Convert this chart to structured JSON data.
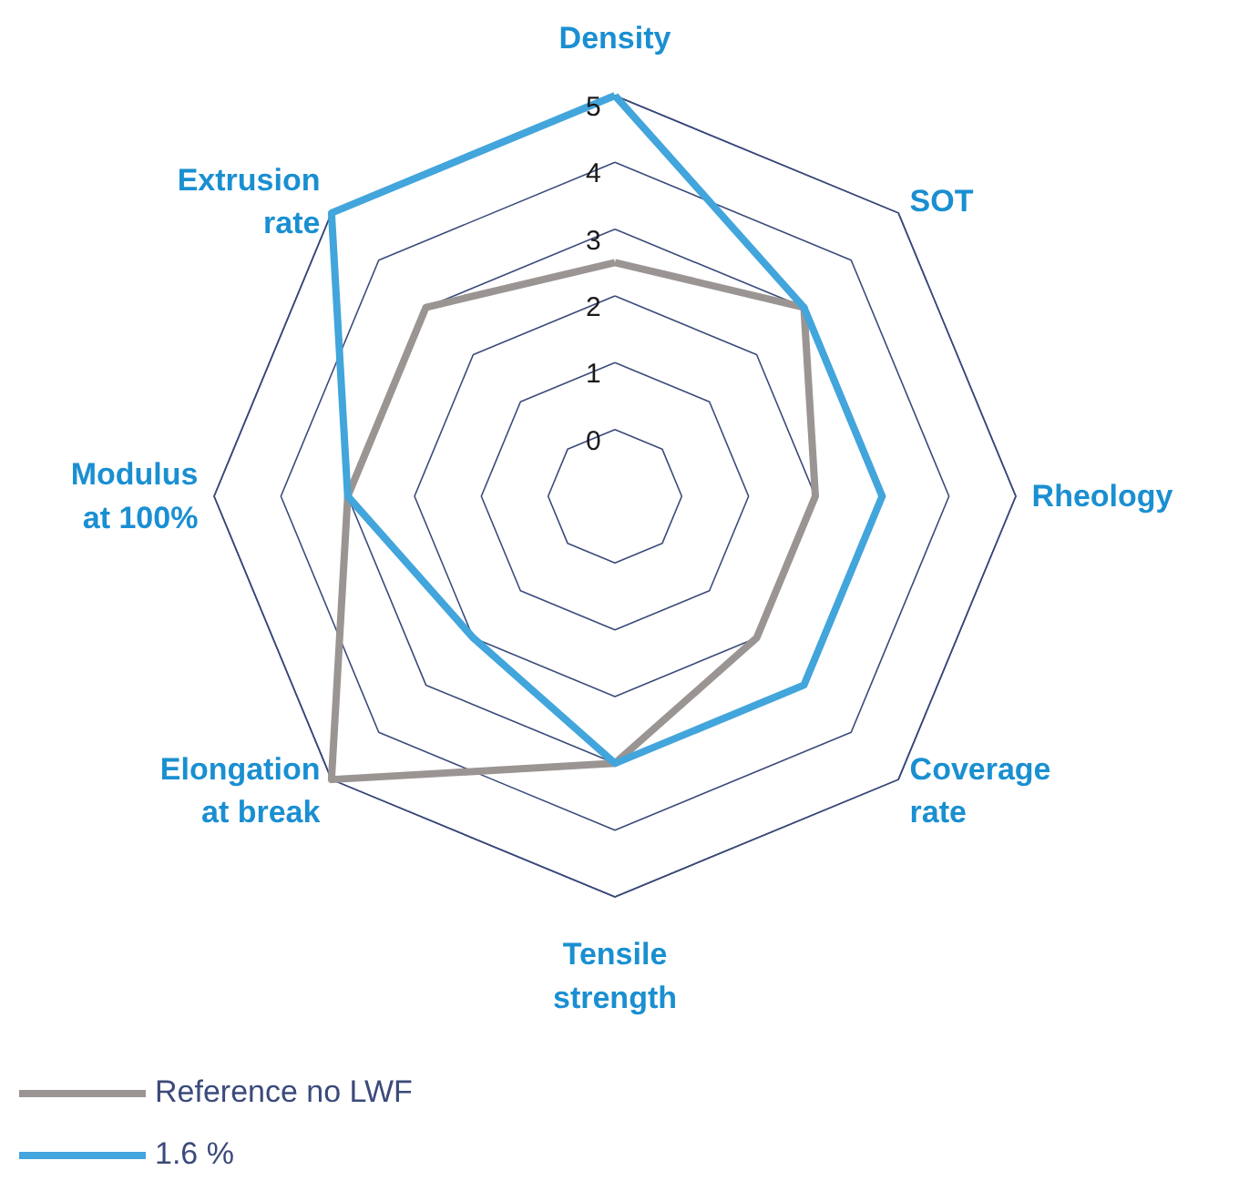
{
  "chart_data": {
    "type": "radar",
    "categories": [
      "Density",
      "SOT",
      "Rheology",
      "Coverage\nrate",
      "Tensile\nstrength",
      "Elongation\nat break",
      "Modulus\nat 100%",
      "Extrusion\nrate"
    ],
    "ylim": [
      -1,
      5
    ],
    "yticks": [
      0,
      1,
      2,
      3,
      4,
      5
    ],
    "legend": "bottom",
    "series": [
      {
        "name": "Reference no LWF",
        "color": "#9a9593",
        "values": [
          2.5,
          3,
          2,
          2,
          3,
          5,
          3,
          3
        ]
      },
      {
        "name": "1.6 %",
        "color": "#42a5dc",
        "values": [
          5,
          3,
          3,
          3,
          3,
          2,
          3,
          5
        ]
      }
    ]
  }
}
